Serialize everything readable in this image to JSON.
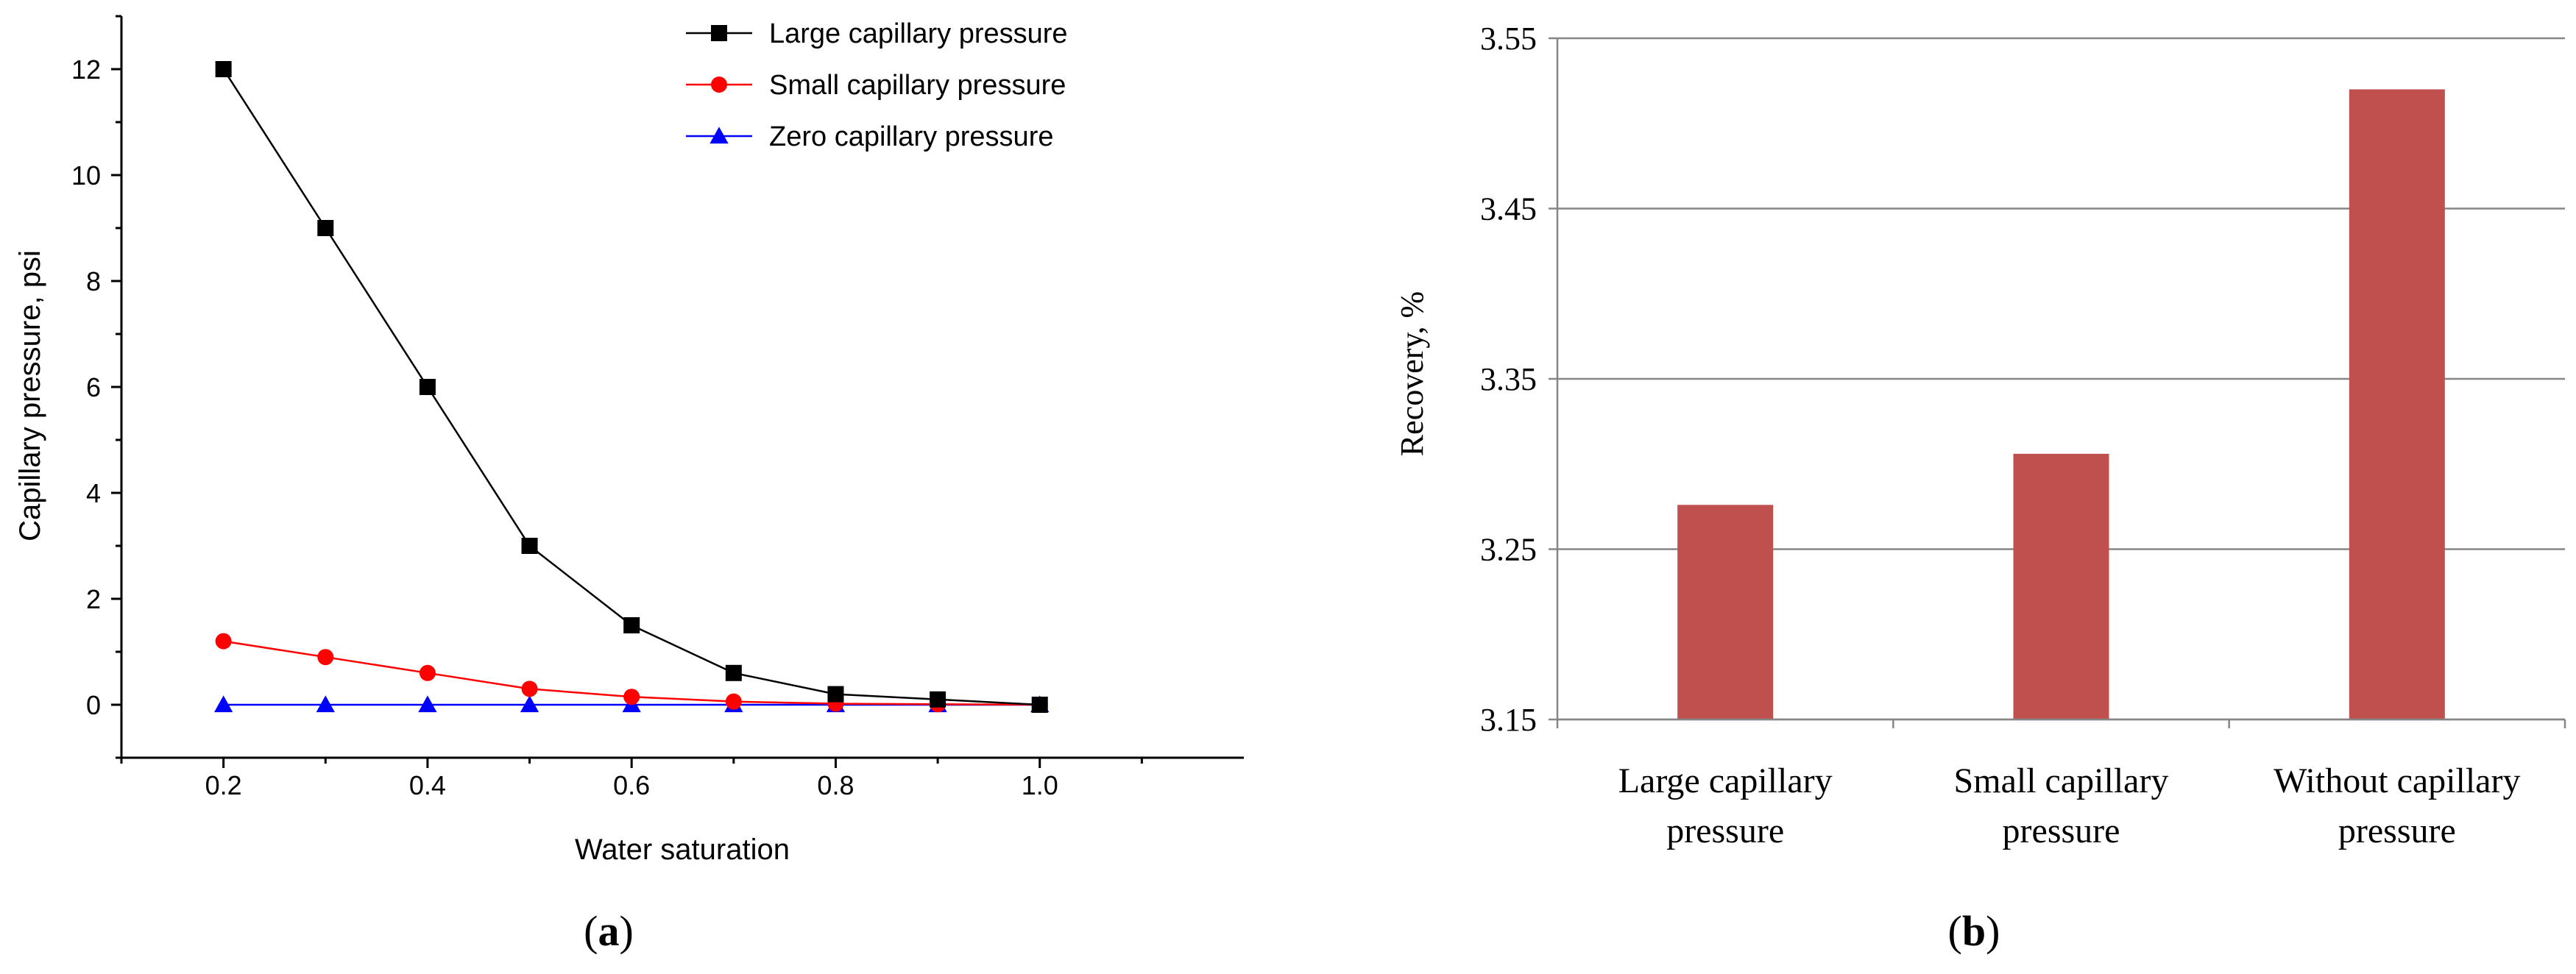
{
  "chart_data": [
    {
      "panel": "a",
      "type": "line",
      "caption": "(a)",
      "caption_letter": "a",
      "xlabel": "Water saturation",
      "ylabel": "Capillary pressure, psi",
      "xlim": [
        0.1,
        1.2
      ],
      "ylim": [
        -1,
        13
      ],
      "x": [
        0.2,
        0.3,
        0.4,
        0.5,
        0.6,
        0.7,
        0.8,
        0.9,
        1.0
      ],
      "x_ticks": [
        "0.2",
        "0.4",
        "0.6",
        "0.8",
        "1.0"
      ],
      "x_tick_values": [
        0.2,
        0.4,
        0.6,
        0.8,
        1.0
      ],
      "y_ticks": [
        "0",
        "2",
        "4",
        "6",
        "8",
        "10",
        "12"
      ],
      "y_tick_values": [
        0,
        2,
        4,
        6,
        8,
        10,
        12
      ],
      "legend_position": "top-right",
      "series": [
        {
          "name": "Large capillary pressure",
          "color": "#000000",
          "marker": "square",
          "values": [
            12,
            9,
            6,
            3,
            1.5,
            0.6,
            0.2,
            0.1,
            0
          ]
        },
        {
          "name": "Small capillary pressure",
          "color": "#ff0000",
          "marker": "circle",
          "values": [
            1.2,
            0.9,
            0.6,
            0.3,
            0.15,
            0.06,
            0.02,
            0.01,
            0
          ]
        },
        {
          "name": "Zero capillary pressure",
          "color": "#0000ff",
          "marker": "triangle",
          "values": [
            0,
            0,
            0,
            0,
            0,
            0,
            0,
            0,
            0
          ]
        }
      ]
    },
    {
      "panel": "b",
      "type": "bar",
      "caption": "(b)",
      "caption_letter": "b",
      "ylabel": "Recovery, %",
      "ylim": [
        3.15,
        3.55
      ],
      "y_ticks": [
        "3.15",
        "3.25",
        "3.35",
        "3.45",
        "3.55"
      ],
      "y_tick_values": [
        3.15,
        3.25,
        3.35,
        3.45,
        3.55
      ],
      "grid": true,
      "bar_color": "#c0504d",
      "categories": [
        [
          "Large capillary",
          "pressure"
        ],
        [
          "Small capillary",
          "pressure"
        ],
        [
          "Without capillary",
          "pressure"
        ]
      ],
      "values": [
        3.276,
        3.306,
        3.52
      ]
    }
  ]
}
